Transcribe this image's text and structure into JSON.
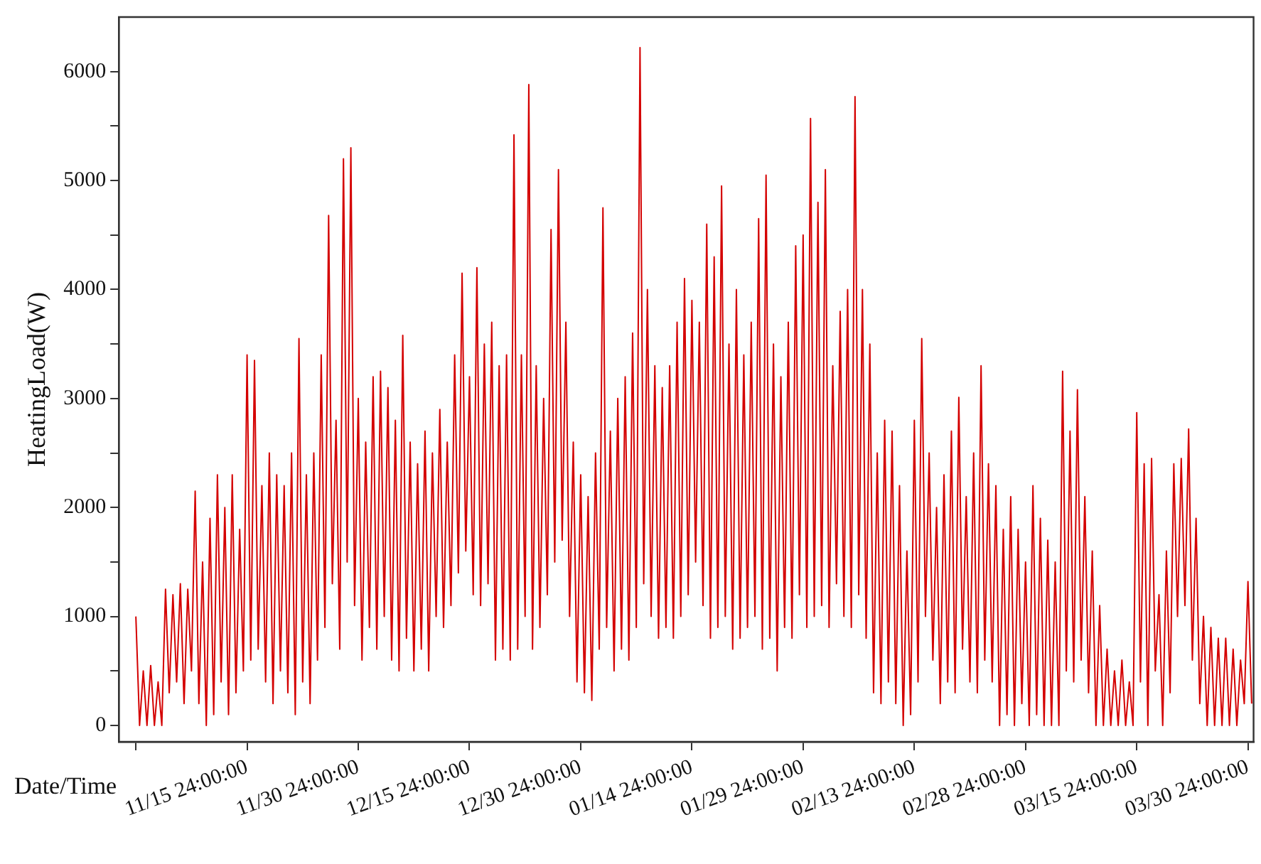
{
  "chart_data": {
    "type": "line",
    "xlabel": "Date/Time",
    "ylabel": "HeatingLoad(W)",
    "marker": "none",
    "categories": [
      null,
      null,
      null,
      null,
      null,
      null,
      null,
      null,
      null,
      null,
      null,
      null,
      null,
      null,
      null,
      null,
      null,
      null,
      null,
      null,
      null,
      null,
      null,
      null,
      null,
      null,
      null,
      null,
      null,
      null,
      "11/15 24:00:00",
      null,
      null,
      null,
      null,
      null,
      null,
      null,
      null,
      null,
      null,
      null,
      null,
      null,
      null,
      null,
      null,
      null,
      null,
      null,
      null,
      null,
      null,
      null,
      null,
      null,
      null,
      null,
      null,
      null,
      "11/30 24:00:00",
      null,
      null,
      null,
      null,
      null,
      null,
      null,
      null,
      null,
      null,
      null,
      null,
      null,
      null,
      null,
      null,
      null,
      null,
      null,
      null,
      null,
      null,
      null,
      null,
      null,
      null,
      null,
      null,
      null,
      "12/15 24:00:00",
      null,
      null,
      null,
      null,
      null,
      null,
      null,
      null,
      null,
      null,
      null,
      null,
      null,
      null,
      null,
      null,
      null,
      null,
      null,
      null,
      null,
      null,
      null,
      null,
      null,
      null,
      null,
      null,
      null,
      "12/30 24:00:00",
      null,
      null,
      null,
      null,
      null,
      null,
      null,
      null,
      null,
      null,
      null,
      null,
      null,
      null,
      null,
      null,
      null,
      null,
      null,
      null,
      null,
      null,
      null,
      null,
      null,
      null,
      null,
      null,
      null,
      "01/14 24:00:00",
      null,
      null,
      null,
      null,
      null,
      null,
      null,
      null,
      null,
      null,
      null,
      null,
      null,
      null,
      null,
      null,
      null,
      null,
      null,
      null,
      null,
      null,
      null,
      null,
      null,
      null,
      null,
      null,
      null,
      "01/29 24:00:00",
      null,
      null,
      null,
      null,
      null,
      null,
      null,
      null,
      null,
      null,
      null,
      null,
      null,
      null,
      null,
      null,
      null,
      null,
      null,
      null,
      null,
      null,
      null,
      null,
      null,
      null,
      null,
      null,
      null,
      "02/13 24:00:00",
      null,
      null,
      null,
      null,
      null,
      null,
      null,
      null,
      null,
      null,
      null,
      null,
      null,
      null,
      null,
      null,
      null,
      null,
      null,
      null,
      null,
      null,
      null,
      null,
      null,
      null,
      null,
      null,
      null,
      "02/28 24:00:00",
      null,
      null,
      null,
      null,
      null,
      null,
      null,
      null,
      null,
      null,
      null,
      null,
      null,
      null,
      null,
      null,
      null,
      null,
      null,
      null,
      null,
      null,
      null,
      null,
      null,
      null,
      null,
      null,
      null,
      "03/15 24:00:00",
      null,
      null,
      null,
      null,
      null,
      null,
      null,
      null,
      null,
      null,
      null,
      null,
      null,
      null,
      null,
      null,
      null,
      null,
      null,
      null,
      null,
      null,
      null,
      null,
      null,
      null,
      null,
      null,
      null,
      "03/30 24:00:00",
      null
    ],
    "ylim": [
      -150,
      6500
    ],
    "yticks": [
      0,
      {
        "value": 500,
        "label": null
      },
      1000,
      {
        "value": 1500,
        "label": null
      },
      2000,
      {
        "value": 2500,
        "label": null
      },
      3000,
      {
        "value": 3500,
        "label": null
      },
      4000,
      {
        "value": 4500,
        "label": null
      },
      5000,
      {
        "value": 5500,
        "label": null
      },
      6000
    ],
    "series": [
      {
        "color": "#d40000",
        "values": [
          1000,
          0,
          500,
          0,
          550,
          0,
          400,
          0,
          1250,
          300,
          1200,
          400,
          1300,
          200,
          1250,
          500,
          2150,
          200,
          1500,
          0,
          1900,
          100,
          2300,
          400,
          2000,
          100,
          2300,
          300,
          1800,
          500,
          3400,
          600,
          3350,
          700,
          2200,
          400,
          2500,
          200,
          2300,
          500,
          2200,
          300,
          2500,
          100,
          3550,
          400,
          2300,
          200,
          2500,
          600,
          3400,
          900,
          4680,
          1300,
          2800,
          700,
          5200,
          1500,
          5300,
          1100,
          3000,
          600,
          2600,
          900,
          3200,
          700,
          3250,
          1000,
          3100,
          600,
          2800,
          500,
          3580,
          800,
          2600,
          500,
          2400,
          700,
          2700,
          500,
          2500,
          1000,
          2900,
          900,
          2600,
          1100,
          3400,
          1400,
          4150,
          1600,
          3200,
          1200,
          4200,
          1100,
          3500,
          1300,
          3700,
          600,
          3300,
          700,
          3400,
          600,
          5420,
          700,
          3400,
          1000,
          5880,
          700,
          3300,
          900,
          3000,
          1200,
          4550,
          1500,
          5100,
          1700,
          3700,
          1000,
          2600,
          400,
          2300,
          300,
          2100,
          230,
          2500,
          700,
          4750,
          900,
          2700,
          500,
          3000,
          700,
          3200,
          600,
          3600,
          900,
          6220,
          1300,
          4000,
          1000,
          3300,
          800,
          3100,
          900,
          3300,
          800,
          3700,
          1000,
          4100,
          1200,
          3900,
          1500,
          3700,
          1100,
          4600,
          800,
          4300,
          900,
          4950,
          1000,
          3500,
          700,
          4000,
          800,
          3400,
          900,
          3700,
          1000,
          4650,
          700,
          5050,
          800,
          3500,
          500,
          3200,
          900,
          3700,
          800,
          4400,
          1200,
          4500,
          900,
          5570,
          1000,
          4800,
          1100,
          5100,
          900,
          3300,
          1300,
          3800,
          1000,
          4000,
          900,
          5770,
          1200,
          4000,
          800,
          3500,
          300,
          2500,
          200,
          2800,
          400,
          2700,
          200,
          2200,
          0,
          1600,
          100,
          2800,
          400,
          3550,
          1000,
          2500,
          600,
          2000,
          200,
          2300,
          400,
          2700,
          300,
          3010,
          700,
          2100,
          400,
          2500,
          300,
          3300,
          600,
          2400,
          400,
          2200,
          0,
          1800,
          100,
          2100,
          0,
          1800,
          200,
          1500,
          0,
          2200,
          100,
          1900,
          0,
          1700,
          0,
          1500,
          0,
          3250,
          500,
          2700,
          400,
          3080,
          600,
          2100,
          300,
          1600,
          0,
          1100,
          0,
          700,
          0,
          500,
          0,
          600,
          0,
          400,
          0,
          2870,
          400,
          2400,
          0,
          2450,
          500,
          1200,
          0,
          1600,
          300,
          2400,
          1000,
          2450,
          1100,
          2720,
          600,
          1900,
          200,
          1000,
          0,
          900,
          0,
          800,
          0,
          800,
          0,
          700,
          0,
          600,
          200,
          1320,
          200
        ]
      }
    ]
  }
}
